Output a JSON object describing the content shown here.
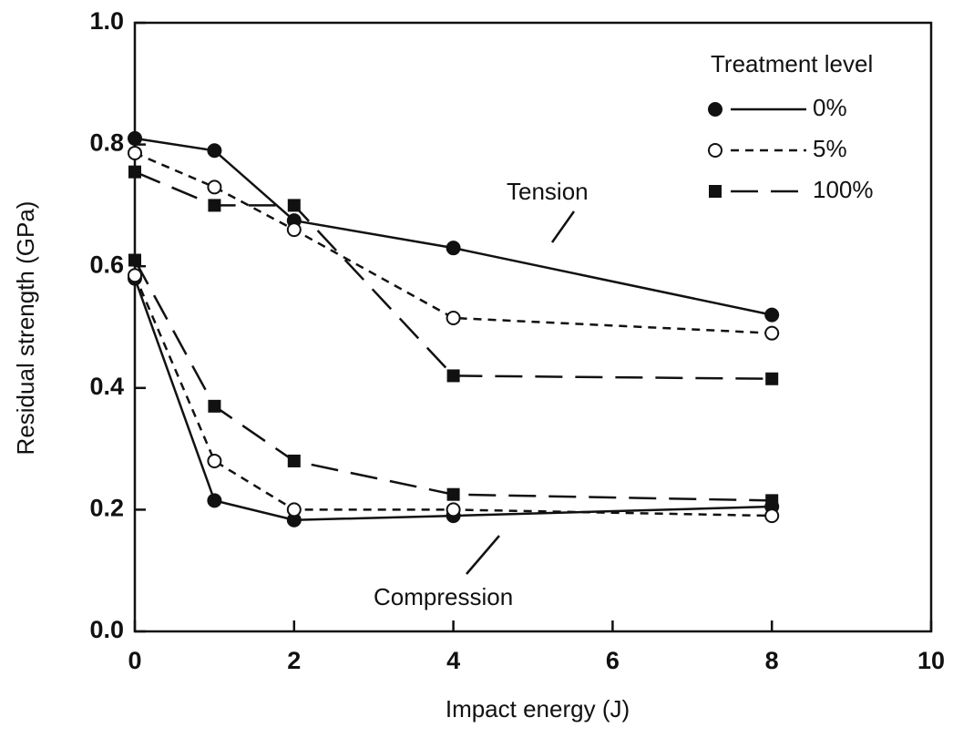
{
  "chart_data": {
    "type": "line",
    "xlabel": "Impact energy (J)",
    "ylabel": "Residual strength (GPa)",
    "legend_title": "Treatment level",
    "legend": "top-right",
    "annotations": [
      "Tension",
      "Compression"
    ],
    "x": [
      0,
      1,
      2,
      4,
      8
    ],
    "series": [
      {
        "name": "0%",
        "color": "#111111",
        "marker": "filled-circle",
        "dash": "solid",
        "tension": [
          0.81,
          0.79,
          0.675,
          0.63,
          0.52
        ],
        "compression": [
          0.58,
          0.215,
          0.183,
          0.19,
          0.205
        ]
      },
      {
        "name": "5%",
        "color": "#111111",
        "marker": "open-circle",
        "dash": "short",
        "tension": [
          0.786,
          0.73,
          0.66,
          0.515,
          0.49
        ],
        "compression": [
          0.585,
          0.28,
          0.2,
          0.2,
          0.19
        ]
      },
      {
        "name": "100%",
        "color": "#111111",
        "marker": "filled-square",
        "dash": "long",
        "tension": [
          0.755,
          0.7,
          0.7,
          0.42,
          0.415
        ],
        "compression": [
          0.61,
          0.37,
          0.28,
          0.225,
          0.215
        ]
      }
    ],
    "xlim": [
      0,
      10
    ],
    "xticks": [
      0,
      2,
      4,
      6,
      8,
      10
    ],
    "ylim": [
      0,
      1
    ],
    "yticks": [
      {
        "value": 0,
        "label": "0.0"
      },
      0.2,
      0.4,
      0.6,
      0.8,
      {
        "value": 1,
        "label": "1.0"
      }
    ]
  }
}
